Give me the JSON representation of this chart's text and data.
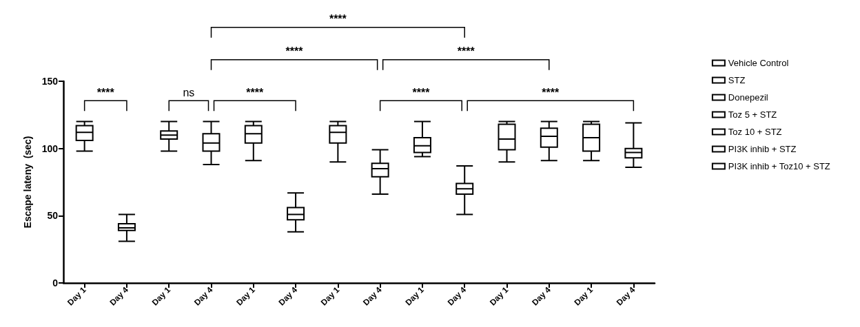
{
  "chart_data": {
    "type": "box",
    "ylabel": "Escape lateny  (sec)",
    "categories": [
      "Day 1",
      "Day 4",
      "Day 1",
      "Day 4",
      "Day 1",
      "Day 4",
      "Day 1",
      "Day 4",
      "Day 1",
      "Day 4",
      "Day 1",
      "Day 4",
      "Day 1",
      "Day 4"
    ],
    "ylim": [
      0,
      150
    ],
    "yticks": [
      0,
      50,
      100,
      150
    ],
    "grid": false,
    "legend": "right",
    "series": [
      {
        "name": "Vehicle Control",
        "color": "#000000",
        "boxes": [
          {
            "low": 98,
            "q1": 106,
            "median": 112,
            "q3": 117,
            "high": 120
          },
          {
            "low": 31,
            "q1": 39,
            "median": 41,
            "q3": 44,
            "high": 51
          },
          null,
          null,
          null,
          null,
          null,
          null,
          null,
          null,
          null,
          null,
          null,
          null
        ]
      },
      {
        "name": "STZ",
        "color": "#000000",
        "boxes": [
          null,
          null,
          {
            "low": 98,
            "q1": 107,
            "median": 110,
            "q3": 113,
            "high": 120
          },
          {
            "low": 88,
            "q1": 98,
            "median": 104,
            "q3": 111,
            "high": 120
          },
          null,
          null,
          null,
          null,
          null,
          null,
          null,
          null,
          null,
          null
        ]
      },
      {
        "name": "Donepezil",
        "color": "#000000",
        "boxes": [
          null,
          null,
          null,
          null,
          {
            "low": 91,
            "q1": 104,
            "median": 111,
            "q3": 117,
            "high": 120
          },
          {
            "low": 38,
            "q1": 47,
            "median": 51,
            "q3": 56,
            "high": 67
          },
          null,
          null,
          null,
          null,
          null,
          null,
          null,
          null
        ]
      },
      {
        "name": "Toz 5 + STZ",
        "color": "#000000",
        "boxes": [
          null,
          null,
          null,
          null,
          null,
          null,
          {
            "low": 90,
            "q1": 104,
            "median": 112,
            "q3": 117,
            "high": 120
          },
          {
            "low": 66,
            "q1": 79,
            "median": 85,
            "q3": 89,
            "high": 99
          },
          null,
          null,
          null,
          null,
          null,
          null
        ]
      },
      {
        "name": "Toz 10 + STZ",
        "color": "#000000",
        "boxes": [
          null,
          null,
          null,
          null,
          null,
          null,
          null,
          null,
          {
            "low": 94,
            "q1": 97,
            "median": 102,
            "q3": 108,
            "high": 120
          },
          {
            "low": 51,
            "q1": 66,
            "median": 70,
            "q3": 74,
            "high": 87
          },
          null,
          null,
          null,
          null
        ]
      },
      {
        "name": "PI3K inhib + STZ",
        "color": "#000000",
        "boxes": [
          null,
          null,
          null,
          null,
          null,
          null,
          null,
          null,
          null,
          null,
          {
            "low": 90,
            "q1": 99,
            "median": 107,
            "q3": 118,
            "high": 120
          },
          {
            "low": 91,
            "q1": 101,
            "median": 109,
            "q3": 115,
            "high": 120
          },
          null,
          null
        ]
      },
      {
        "name": "PI3K inhib + Toz10 + STZ",
        "color": "#000000",
        "boxes": [
          null,
          null,
          null,
          null,
          null,
          null,
          null,
          null,
          null,
          null,
          null,
          null,
          {
            "low": 91,
            "q1": 98,
            "median": 108,
            "q3": 118,
            "high": 120
          },
          {
            "low": 86,
            "q1": 93,
            "median": 97,
            "q3": 100,
            "high": 119
          }
        ]
      }
    ],
    "annotations": [
      "****",
      "ns",
      "****",
      "****",
      "****",
      "****",
      "****",
      "****"
    ]
  }
}
